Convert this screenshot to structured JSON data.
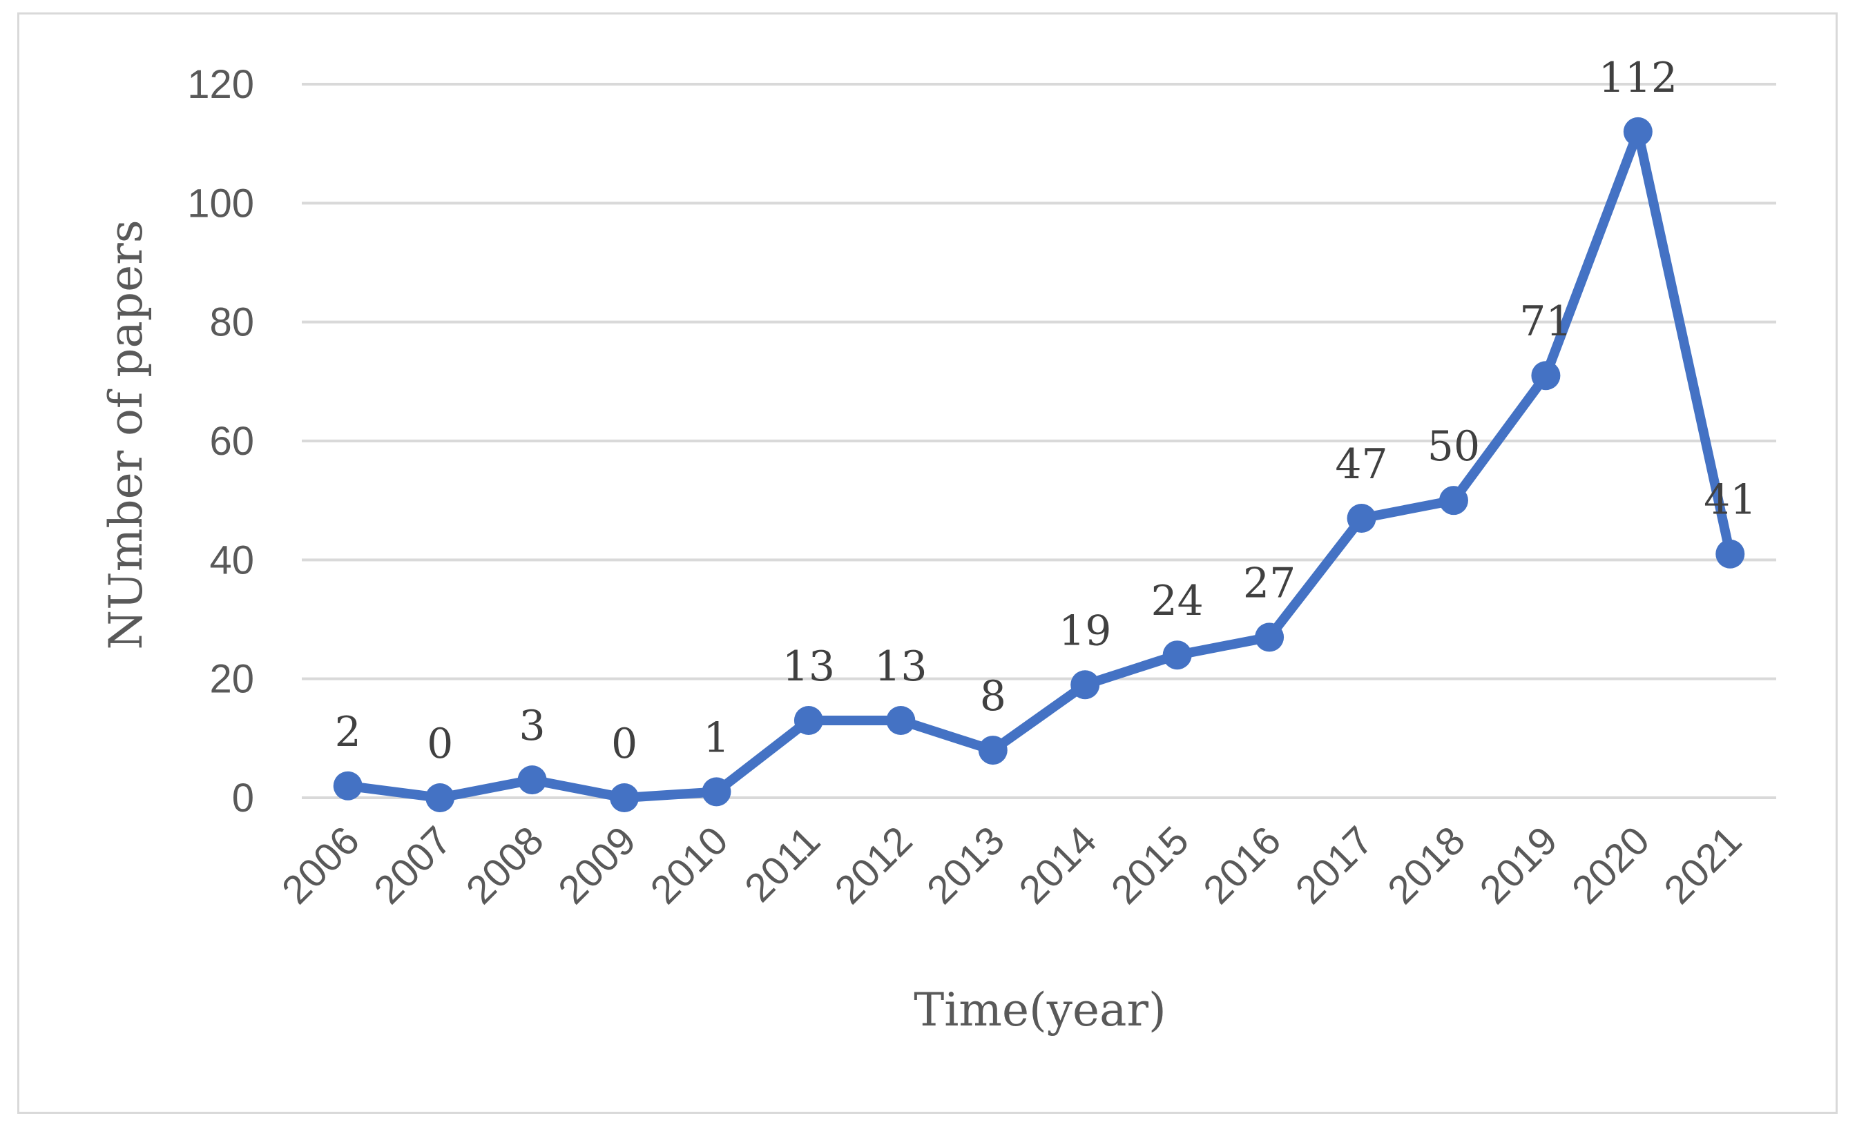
{
  "chart_data": {
    "type": "line",
    "title": "",
    "xlabel": "Time(year)",
    "ylabel": "NUmber of papers",
    "categories": [
      "2006",
      "2007",
      "2008",
      "2009",
      "2010",
      "2011",
      "2012",
      "2013",
      "2014",
      "2015",
      "2016",
      "2017",
      "2018",
      "2019",
      "2020",
      "2021"
    ],
    "series": [
      {
        "values": [
          2,
          0,
          3,
          0,
          1,
          13,
          13,
          8,
          19,
          24,
          27,
          47,
          50,
          71,
          112,
          41
        ]
      }
    ],
    "ylim": [
      0,
      120
    ],
    "yticks": [
      0,
      20,
      40,
      60,
      80,
      100,
      120
    ],
    "grid": true,
    "data_labels": true,
    "legend": "none",
    "line_color": "#4472c4"
  }
}
